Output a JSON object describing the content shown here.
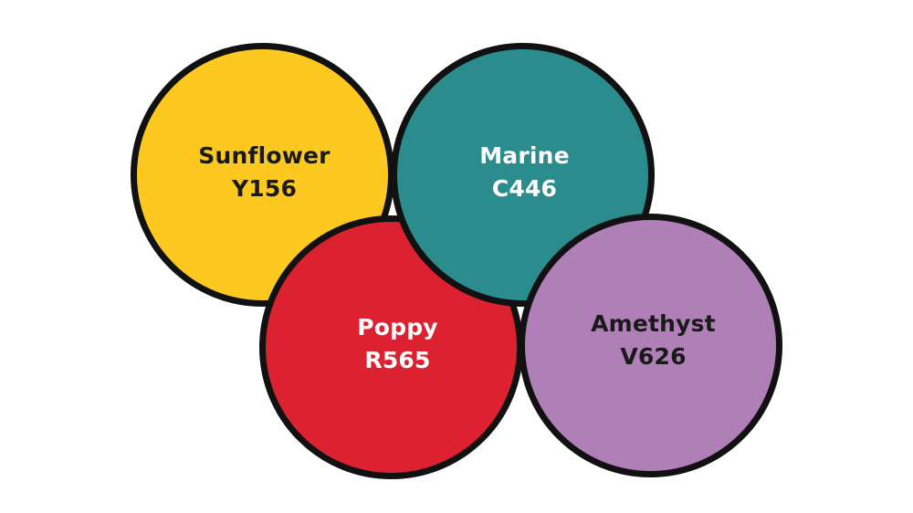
{
  "swatches": [
    {
      "name": "Sunflower",
      "code": "Y156",
      "fill": "#FDC920",
      "text_color": "#1a1a1a"
    },
    {
      "name": "Marine",
      "code": "C446",
      "fill": "#2A8C8C",
      "text_color": "#ffffff"
    },
    {
      "name": "Poppy",
      "code": "R565",
      "fill": "#DC2130",
      "text_color": "#ffffff"
    },
    {
      "name": "Amethyst",
      "code": "V626",
      "fill": "#B07FB7",
      "text_color": "#1a1a1a"
    }
  ],
  "outline_color": "#111111",
  "background": "#ffffff"
}
